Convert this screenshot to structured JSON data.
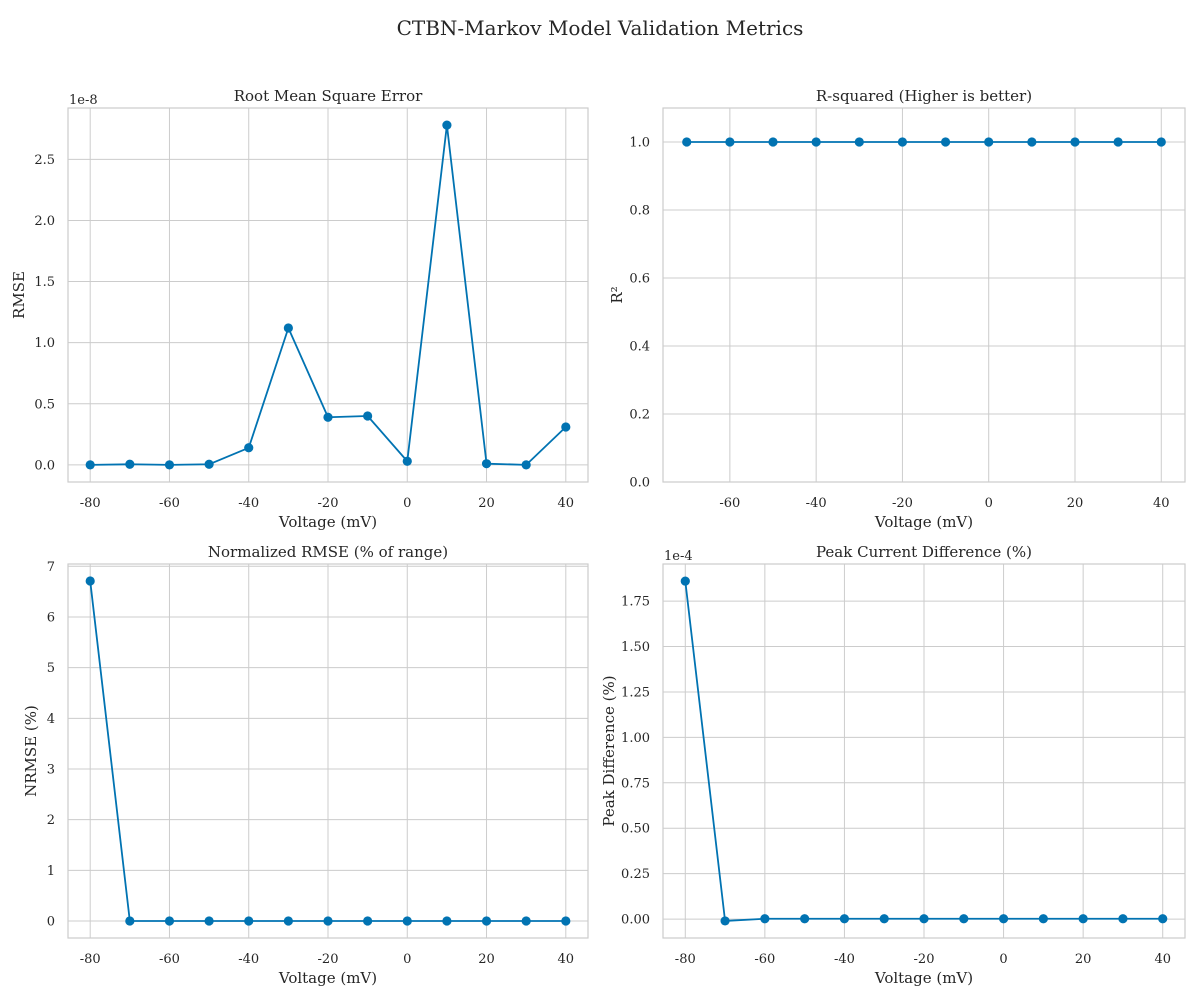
{
  "figure": {
    "title": "CTBN-Markov Model Validation Metrics",
    "accent_color": "#0173b2"
  },
  "chart_data": [
    {
      "type": "line",
      "title": "Root Mean Square Error",
      "xlabel": "Voltage (mV)",
      "ylabel": "RMSE",
      "offset_label": "1e-8",
      "x": [
        -80,
        -70,
        -60,
        -50,
        -40,
        -30,
        -20,
        -10,
        0,
        10,
        20,
        30,
        40
      ],
      "series": [
        {
          "values": [
            0.0,
            0.005,
            0.0,
            0.005,
            0.14,
            1.12,
            0.39,
            0.4,
            0.03,
            2.78,
            0.01,
            0.0,
            0.31
          ]
        }
      ],
      "xlim": [
        -85.6,
        45.6
      ],
      "ylim": [
        -0.14,
        2.92
      ],
      "xticks": [
        -80,
        -60,
        -40,
        -20,
        0,
        20,
        40
      ],
      "xtick_labels": [
        "-80",
        "-60",
        "-40",
        "-20",
        "0",
        "20",
        "40"
      ],
      "yticks": [
        0,
        0.5,
        1.0,
        1.5,
        2.0,
        2.5
      ],
      "ytick_labels": [
        "0.0",
        "0.5",
        "1.0",
        "1.5",
        "2.0",
        "2.5"
      ],
      "grid": true
    },
    {
      "type": "line",
      "title": "R-squared (Higher is better)",
      "xlabel": "Voltage (mV)",
      "ylabel": "R²",
      "offset_label": "",
      "x": [
        -70,
        -60,
        -50,
        -40,
        -30,
        -20,
        -10,
        0,
        10,
        20,
        30,
        40
      ],
      "series": [
        {
          "values": [
            1.0,
            1.0,
            1.0,
            1.0,
            1.0,
            1.0,
            1.0,
            1.0,
            1.0,
            1.0,
            1.0,
            1.0
          ]
        }
      ],
      "xlim": [
        -75.5,
        45.5
      ],
      "ylim": [
        0,
        1.1
      ],
      "xticks": [
        -60,
        -40,
        -20,
        0,
        20,
        40
      ],
      "xtick_labels": [
        "-60",
        "-40",
        "-20",
        "0",
        "20",
        "40"
      ],
      "yticks": [
        0,
        0.2,
        0.4,
        0.6,
        0.8,
        1.0
      ],
      "ytick_labels": [
        "0.0",
        "0.2",
        "0.4",
        "0.6",
        "0.8",
        "1.0"
      ],
      "grid": true
    },
    {
      "type": "line",
      "title": "Normalized RMSE (% of range)",
      "xlabel": "Voltage (mV)",
      "ylabel": "NRMSE (%)",
      "offset_label": "",
      "x": [
        -80,
        -70,
        -60,
        -50,
        -40,
        -30,
        -20,
        -10,
        0,
        10,
        20,
        30,
        40
      ],
      "series": [
        {
          "values": [
            6.71,
            0,
            0,
            0,
            0,
            0,
            0,
            0,
            0,
            0,
            0,
            0,
            0
          ]
        }
      ],
      "xlim": [
        -85.6,
        45.6
      ],
      "ylim": [
        -0.335,
        7.045
      ],
      "xticks": [
        -80,
        -60,
        -40,
        -20,
        0,
        20,
        40
      ],
      "xtick_labels": [
        "-80",
        "-60",
        "-40",
        "-20",
        "0",
        "20",
        "40"
      ],
      "yticks": [
        0,
        1,
        2,
        3,
        4,
        5,
        6,
        7
      ],
      "ytick_labels": [
        "0",
        "1",
        "2",
        "3",
        "4",
        "5",
        "6",
        "7"
      ],
      "grid": true
    },
    {
      "type": "line",
      "title": "Peak Current Difference (%)",
      "xlabel": "Voltage (mV)",
      "ylabel": "Peak Difference (%)",
      "offset_label": "1e-4",
      "x": [
        -80,
        -70,
        -60,
        -50,
        -40,
        -30,
        -20,
        -10,
        0,
        10,
        20,
        30,
        40
      ],
      "series": [
        {
          "values": [
            1.86,
            -0.01,
            0.002,
            0.002,
            0.002,
            0.002,
            0.002,
            0.002,
            0.002,
            0.002,
            0.002,
            0.002,
            0.002
          ]
        }
      ],
      "xlim": [
        -85.6,
        45.6
      ],
      "ylim": [
        -0.104,
        1.954
      ],
      "xticks": [
        -80,
        -60,
        -40,
        -20,
        0,
        20,
        40
      ],
      "xtick_labels": [
        "-80",
        "-60",
        "-40",
        "-20",
        "0",
        "20",
        "40"
      ],
      "yticks": [
        0,
        0.25,
        0.5,
        0.75,
        1.0,
        1.25,
        1.5,
        1.75
      ],
      "ytick_labels": [
        "0.00",
        "0.25",
        "0.50",
        "0.75",
        "1.00",
        "1.25",
        "1.50",
        "1.75"
      ],
      "grid": true
    }
  ]
}
